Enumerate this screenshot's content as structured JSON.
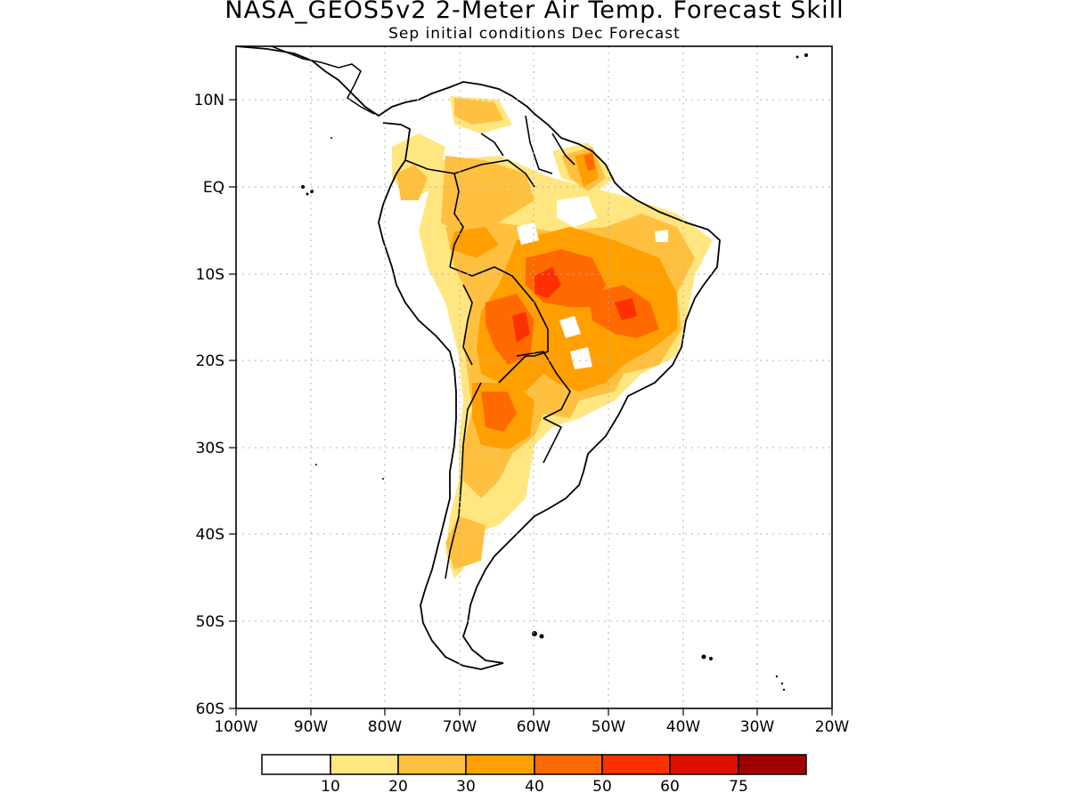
{
  "title": "NASA_GEOS5v2 2-Meter Air Temp. Forecast Skill",
  "subtitle": "Sep initial conditions  Dec Forecast",
  "map": {
    "lon_range": [
      -100,
      -20
    ],
    "lat_range": [
      -60,
      15
    ],
    "lon_ticks": [
      "100W",
      "90W",
      "80W",
      "70W",
      "60W",
      "50W",
      "40W",
      "30W",
      "20W"
    ],
    "lat_ticks": [
      "10N",
      "EQ",
      "10S",
      "20S",
      "30S",
      "40S",
      "50S",
      "60S"
    ]
  },
  "colorbar": {
    "labels": [
      "10",
      "20",
      "30",
      "40",
      "50",
      "60",
      "75"
    ],
    "colors": [
      "#ffffff",
      "#ffe680",
      "#ffc040",
      "#ffa000",
      "#ff6a00",
      "#ff3000",
      "#dd1000",
      "#a00000"
    ]
  }
}
